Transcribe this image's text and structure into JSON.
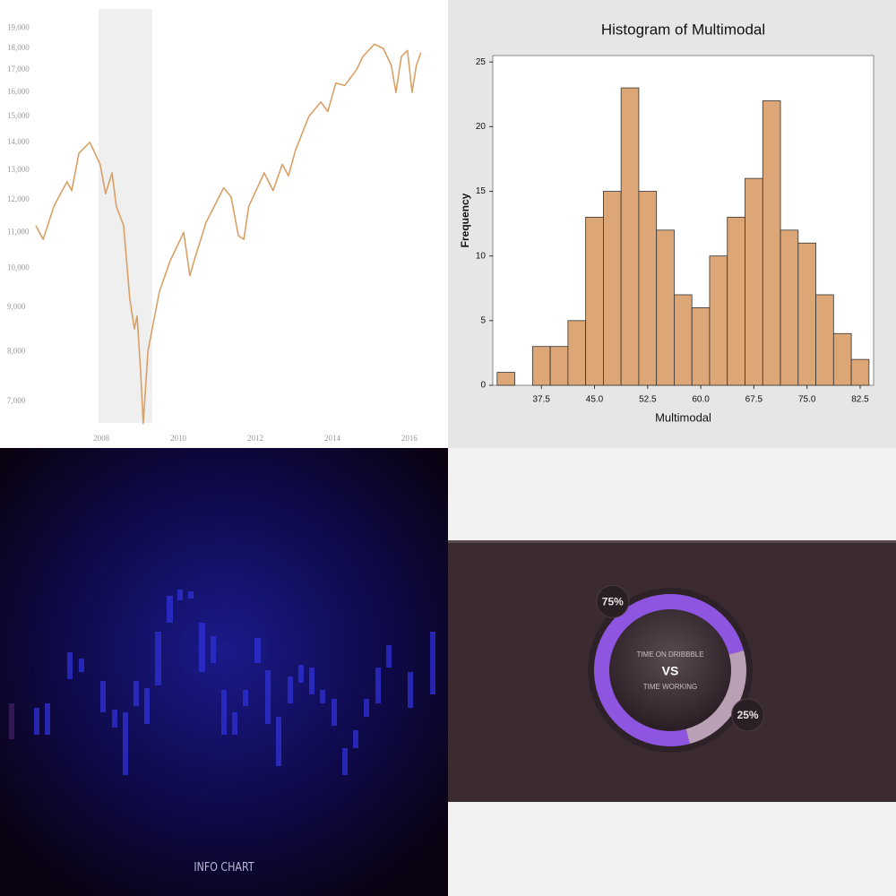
{
  "chart_data": [
    {
      "type": "line",
      "log_y": true,
      "grid": false,
      "color": "#d9a066",
      "shaded_x": [
        2007.93,
        2009.32
      ],
      "x": [
        2006.3,
        2006.49,
        2006.77,
        2007.11,
        2007.23,
        2007.42,
        2007.7,
        2007.97,
        2008.11,
        2008.28,
        2008.39,
        2008.58,
        2008.74,
        2008.86,
        2008.93,
        2009.02,
        2009.09,
        2009.21,
        2009.32,
        2009.51,
        2009.79,
        2010.14,
        2010.3,
        2010.44,
        2010.72,
        2011.18,
        2011.37,
        2011.56,
        2011.7,
        2011.83,
        2012.23,
        2012.46,
        2012.7,
        2012.86,
        2013.04,
        2013.39,
        2013.7,
        2013.88,
        2014.09,
        2014.32,
        2014.63,
        2014.79,
        2015.09,
        2015.32,
        2015.53,
        2015.65,
        2015.79,
        2015.95,
        2016.07,
        2016.18,
        2016.3
      ],
      "values": [
        11200,
        10800,
        11800,
        12600,
        12300,
        13600,
        14000,
        13200,
        12200,
        12900,
        11800,
        11200,
        9200,
        8500,
        8800,
        7600,
        6600,
        8000,
        8500,
        9400,
        10200,
        11000,
        9800,
        10300,
        11300,
        12400,
        12100,
        10900,
        10800,
        11800,
        12900,
        12300,
        13200,
        12800,
        13700,
        15000,
        15600,
        15200,
        16400,
        16300,
        17000,
        17600,
        18200,
        18000,
        17200,
        16000,
        17600,
        17900,
        16000,
        17200,
        17800
      ],
      "xlim": [
        2006.3,
        2016.7
      ],
      "xticks": [
        2008,
        2010,
        2012,
        2014,
        2016
      ],
      "ylim": [
        6330,
        20000
      ],
      "yticks": [
        {
          "value": 7000,
          "label": "7,000"
        },
        {
          "value": 8000,
          "label": "8,000"
        },
        {
          "value": 9000,
          "label": "9,000"
        },
        {
          "value": 10000,
          "label": "10,000"
        },
        {
          "value": 11000,
          "label": "11,000"
        },
        {
          "value": 12000,
          "label": "12,000"
        },
        {
          "value": 13000,
          "label": "13,000"
        },
        {
          "value": 14000,
          "label": "14,000"
        },
        {
          "value": 15000,
          "label": "15,000"
        },
        {
          "value": 16000,
          "label": "16,000"
        },
        {
          "value": 17000,
          "label": "17,000"
        },
        {
          "value": 18000,
          "label": "18,000"
        },
        {
          "value": 19000,
          "label": "19,000"
        }
      ]
    },
    {
      "type": "histogram",
      "title": "Histogram of Multimodal",
      "xlabel": "Multimodal",
      "ylabel": "Frequency",
      "color": "#dca676",
      "bins": [
        31.25,
        33.75,
        36.25,
        38.75,
        41.25,
        43.75,
        46.25,
        48.75,
        51.25,
        53.75,
        56.25,
        58.75,
        61.25,
        63.75,
        66.25,
        68.75,
        71.25,
        73.75,
        76.25,
        78.75,
        81.25,
        83.75
      ],
      "counts": [
        1,
        0,
        3,
        3,
        5,
        13,
        15,
        23,
        15,
        12,
        7,
        6,
        10,
        13,
        16,
        22,
        12,
        11,
        7,
        4,
        2
      ],
      "xlim": [
        30.64,
        84.4
      ],
      "xticks": [
        37.5,
        {
          "value": 45,
          "label": "45.0"
        },
        52.5,
        {
          "value": 60,
          "label": "60.0"
        },
        67.5,
        {
          "value": 75,
          "label": "75.0"
        },
        82.5
      ],
      "ylim": [
        0,
        25.5
      ],
      "yticks": [
        0,
        5,
        10,
        15,
        20,
        25
      ]
    },
    {
      "type": "image",
      "title": "INFO CHART"
    },
    {
      "type": "donut",
      "categories": [
        "TIME ON DRIBBBLE",
        "TIME WORKING"
      ],
      "center_text": "VS",
      "values": [
        75,
        25
      ],
      "value_labels": [
        "75%",
        "25%"
      ],
      "colors": [
        "#8e55e0",
        "#b9a0b4"
      ]
    }
  ]
}
